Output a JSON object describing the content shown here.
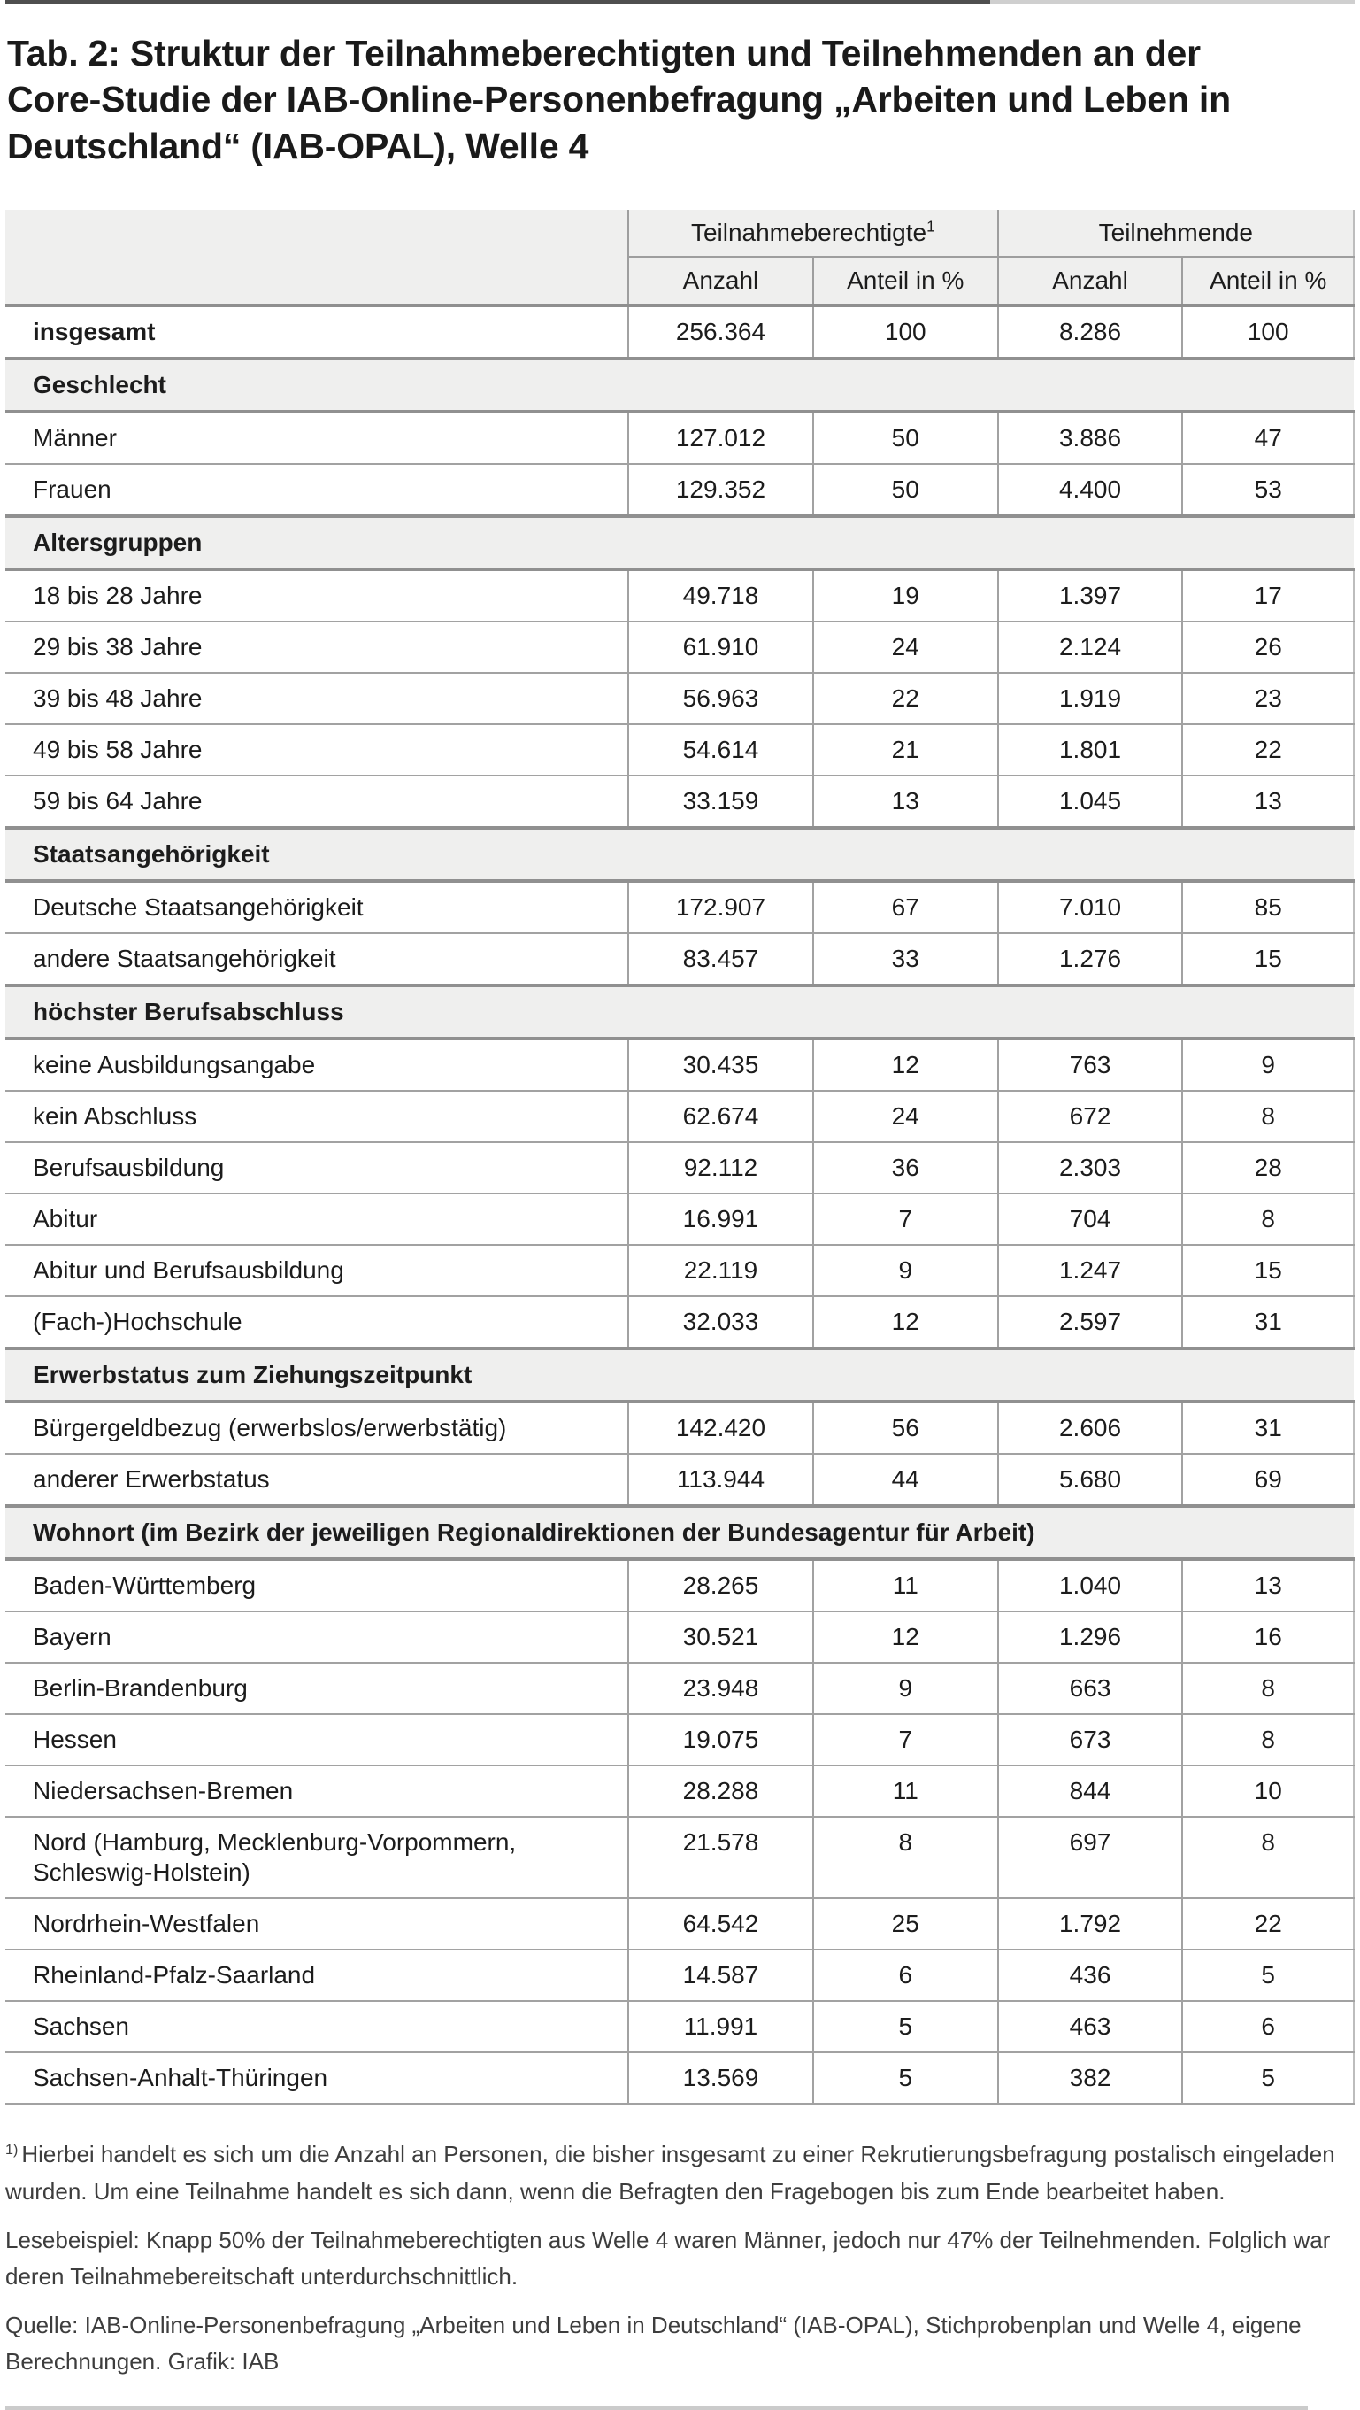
{
  "title": "Tab. 2: Struktur der Teilnahmeberechtigten und Teilnehmenden an der Core-Studie der IAB-Online-Personenbefragung „Arbeiten und Leben in Deutschland“ (IAB-OPAL), Welle 4",
  "colors": {
    "section_background": "#efefee",
    "header_background": "#efefee",
    "row_border": "#a2a2a2",
    "section_border": "#909090",
    "text": "#1c1c1c",
    "footer_text": "#3d3d3d",
    "top_rule_dark": "#4f4f4f",
    "top_rule_light": "#cfcfcf",
    "bottom_rule": "#cbcbcb"
  },
  "table": {
    "group_headers": [
      {
        "label": "Teilnahmeberechtigte",
        "sup": "1"
      },
      {
        "label": "Teilnehmende",
        "sup": ""
      }
    ],
    "sub_headers": [
      "Anzahl",
      "Anteil in %",
      "Anzahl",
      "Anteil in %"
    ],
    "rows": [
      {
        "type": "data",
        "bold": true,
        "label": "insgesamt",
        "values": [
          "256.364",
          "100",
          "8.286",
          "100"
        ]
      },
      {
        "type": "section",
        "label": "Geschlecht"
      },
      {
        "type": "data",
        "bold": false,
        "label": "Männer",
        "values": [
          "127.012",
          "50",
          "3.886",
          "47"
        ]
      },
      {
        "type": "data",
        "bold": false,
        "label": "Frauen",
        "values": [
          "129.352",
          "50",
          "4.400",
          "53"
        ]
      },
      {
        "type": "section",
        "label": "Altersgruppen"
      },
      {
        "type": "data",
        "bold": false,
        "label": "18 bis 28 Jahre",
        "values": [
          "49.718",
          "19",
          "1.397",
          "17"
        ]
      },
      {
        "type": "data",
        "bold": false,
        "label": "29 bis 38 Jahre",
        "values": [
          "61.910",
          "24",
          "2.124",
          "26"
        ]
      },
      {
        "type": "data",
        "bold": false,
        "label": "39 bis 48 Jahre",
        "values": [
          "56.963",
          "22",
          "1.919",
          "23"
        ]
      },
      {
        "type": "data",
        "bold": false,
        "label": "49 bis 58 Jahre",
        "values": [
          "54.614",
          "21",
          "1.801",
          "22"
        ]
      },
      {
        "type": "data",
        "bold": false,
        "label": "59 bis 64 Jahre",
        "values": [
          "33.159",
          "13",
          "1.045",
          "13"
        ]
      },
      {
        "type": "section",
        "label": "Staatsangehörigkeit"
      },
      {
        "type": "data",
        "bold": false,
        "label": "Deutsche Staatsangehörigkeit",
        "values": [
          "172.907",
          "67",
          "7.010",
          "85"
        ]
      },
      {
        "type": "data",
        "bold": false,
        "label": "andere Staatsangehörigkeit",
        "values": [
          "83.457",
          "33",
          "1.276",
          "15"
        ]
      },
      {
        "type": "section",
        "label": "höchster Berufsabschluss"
      },
      {
        "type": "data",
        "bold": false,
        "label": "keine Ausbildungsangabe",
        "values": [
          "30.435",
          "12",
          "763",
          "9"
        ]
      },
      {
        "type": "data",
        "bold": false,
        "label": "kein Abschluss",
        "values": [
          "62.674",
          "24",
          "672",
          "8"
        ]
      },
      {
        "type": "data",
        "bold": false,
        "label": "Berufsausbildung",
        "values": [
          "92.112",
          "36",
          "2.303",
          "28"
        ]
      },
      {
        "type": "data",
        "bold": false,
        "label": "Abitur",
        "values": [
          "16.991",
          "7",
          "704",
          "8"
        ]
      },
      {
        "type": "data",
        "bold": false,
        "label": "Abitur und Berufsausbildung",
        "values": [
          "22.119",
          "9",
          "1.247",
          "15"
        ]
      },
      {
        "type": "data",
        "bold": false,
        "label": "(Fach-)Hochschule",
        "values": [
          "32.033",
          "12",
          "2.597",
          "31"
        ]
      },
      {
        "type": "section",
        "label": "Erwerbstatus zum Ziehungszeitpunkt"
      },
      {
        "type": "data",
        "bold": false,
        "label": "Bürgergeldbezug (erwerbslos/erwerbstätig)",
        "values": [
          "142.420",
          "56",
          "2.606",
          "31"
        ]
      },
      {
        "type": "data",
        "bold": false,
        "label": "anderer Erwerbstatus",
        "values": [
          "113.944",
          "44",
          "5.680",
          "69"
        ]
      },
      {
        "type": "section",
        "label": "Wohnort (im Bezirk der jeweiligen Regionaldirektionen der Bundesagentur für Arbeit)"
      },
      {
        "type": "data",
        "bold": false,
        "label": "Baden-Württemberg",
        "values": [
          "28.265",
          "11",
          "1.040",
          "13"
        ]
      },
      {
        "type": "data",
        "bold": false,
        "label": "Bayern",
        "values": [
          "30.521",
          "12",
          "1.296",
          "16"
        ]
      },
      {
        "type": "data",
        "bold": false,
        "label": "Berlin-Brandenburg",
        "values": [
          "23.948",
          "9",
          "663",
          "8"
        ]
      },
      {
        "type": "data",
        "bold": false,
        "label": "Hessen",
        "values": [
          "19.075",
          "7",
          "673",
          "8"
        ]
      },
      {
        "type": "data",
        "bold": false,
        "label": "Niedersachsen-Bremen",
        "values": [
          "28.288",
          "11",
          "844",
          "10"
        ]
      },
      {
        "type": "data",
        "bold": false,
        "label": "Nord (Hamburg, Mecklenburg-Vorpommern, Schleswig-Holstein)",
        "values": [
          "21.578",
          "8",
          "697",
          "8"
        ]
      },
      {
        "type": "data",
        "bold": false,
        "label": "Nordrhein-Westfalen",
        "values": [
          "64.542",
          "25",
          "1.792",
          "22"
        ]
      },
      {
        "type": "data",
        "bold": false,
        "label": "Rheinland-Pfalz-Saarland",
        "values": [
          "14.587",
          "6",
          "436",
          "5"
        ]
      },
      {
        "type": "data",
        "bold": false,
        "label": "Sachsen",
        "values": [
          "11.991",
          "5",
          "463",
          "6"
        ]
      },
      {
        "type": "data",
        "bold": false,
        "label": "Sachsen-Anhalt-Thüringen",
        "values": [
          "13.569",
          "5",
          "382",
          "5"
        ]
      }
    ]
  },
  "footnotes": {
    "footnote_marker": "1)",
    "footnote_text": "Hierbei handelt es sich um die Anzahl an Personen, die bisher insgesamt zu einer Rekrutierungsbefragung postalisch eingeladen wurden. Um eine Teilnahme handelt es sich dann, wenn die Befragten den Fragebogen bis zum Ende bearbeitet haben.",
    "reading_example": "Lesebeispiel: Knapp 50% der Teilnahmeberechtigten aus Welle 4 waren Männer, jedoch nur 47% der Teilnehmenden. Folglich war deren Teilnahmebereitschaft unterdurchschnittlich.",
    "source": "Quelle: IAB-Online-Personenbefragung „Arbeiten und Leben in Deutschland“ (IAB-OPAL), Stichprobenplan und Welle 4, eigene Berechnungen. Grafik: IAB"
  }
}
